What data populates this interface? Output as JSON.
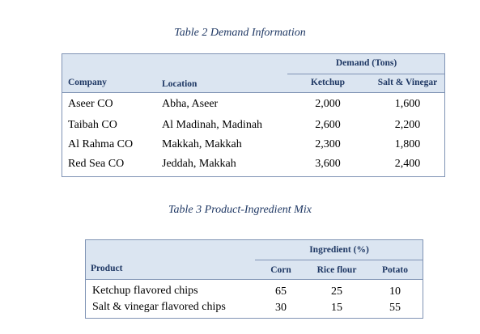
{
  "table2": {
    "caption": "Table 2 Demand Information",
    "group_header": "Demand (Tons)",
    "headers": [
      "Company",
      "Location",
      "Ketchup",
      "Salt & Vinegar"
    ],
    "rows": [
      {
        "company": "Aseer CO",
        "location": "Abha, Aseer",
        "ketchup": "2,000",
        "salt_vinegar": "1,600"
      },
      {
        "company": "Taibah CO",
        "location": "Al Madinah, Madinah",
        "ketchup": "2,600",
        "salt_vinegar": "2,200"
      },
      {
        "company": "Al Rahma CO",
        "location": "Makkah, Makkah",
        "ketchup": "2,300",
        "salt_vinegar": "1,800"
      },
      {
        "company": "Red Sea CO",
        "location": "Jeddah, Makkah",
        "ketchup": "3,600",
        "salt_vinegar": "2,400"
      }
    ]
  },
  "table3": {
    "caption": "Table 3  Product-Ingredient Mix",
    "group_header": "Ingredient (%)",
    "headers": [
      "Product",
      "Corn",
      "Rice flour",
      "Potato"
    ],
    "rows": [
      {
        "product": "Ketchup flavored chips",
        "corn": "65",
        "rice_flour": "25",
        "potato": "10"
      },
      {
        "product": "Salt & vinegar flavored chips",
        "corn": "30",
        "rice_flour": "15",
        "potato": "55"
      }
    ]
  }
}
